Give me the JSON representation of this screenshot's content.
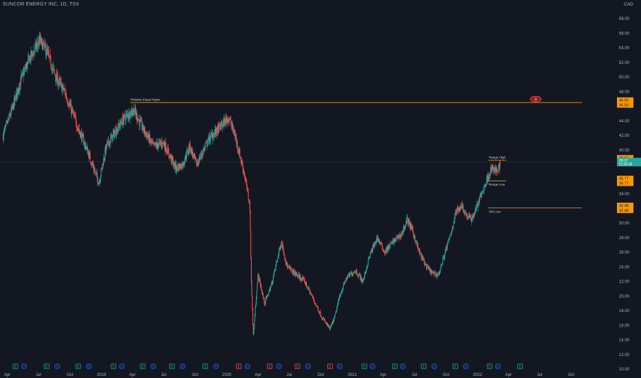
{
  "header": {
    "symbol_title": "SUNCOR ENERGY INC, 1D, TSX",
    "currency": "CAD"
  },
  "colors": {
    "background": "#131722",
    "up": "#26a69a",
    "down": "#ef5350",
    "level_line": "#f0a030",
    "axis_text": "#b2b5be",
    "price_tag_orange": "#ff9800",
    "price_tag_last": "#26a69a"
  },
  "chart_data": {
    "type": "candlestick",
    "x_axis_ticks": [
      "Apr",
      "Jul",
      "Oct",
      "2019",
      "Apr",
      "Jul",
      "Oct",
      "2020",
      "Apr",
      "Jul",
      "Oct",
      "2021",
      "Apr",
      "Jul",
      "Oct",
      "2022",
      "Apr",
      "Jul",
      "Oct"
    ],
    "y_axis_ticks": [
      "10.00",
      "12.00",
      "14.00",
      "16.00",
      "18.00",
      "20.00",
      "22.00",
      "24.00",
      "26.00",
      "28.00",
      "30.00",
      "32.00",
      "34.00",
      "36.00",
      "38.00",
      "40.00",
      "42.00",
      "44.00",
      "46.00",
      "48.00",
      "50.00",
      "52.00",
      "54.00",
      "56.00",
      "58.00"
    ],
    "ylim": [
      10,
      59.5
    ],
    "time_range": [
      "2018-03",
      "2022-11"
    ],
    "close_path": [
      [
        "2018-03-20",
        42.0
      ],
      [
        "2018-04-15",
        45.5
      ],
      [
        "2018-05-10",
        49.5
      ],
      [
        "2018-06-05",
        52.5
      ],
      [
        "2018-07-05",
        55.0
      ],
      [
        "2018-07-25",
        53.5
      ],
      [
        "2018-08-20",
        50.0
      ],
      [
        "2018-09-15",
        48.0
      ],
      [
        "2018-10-05",
        45.5
      ],
      [
        "2018-10-25",
        43.0
      ],
      [
        "2018-11-20",
        40.0
      ],
      [
        "2018-12-24",
        35.5
      ],
      [
        "2019-01-15",
        40.5
      ],
      [
        "2019-02-10",
        42.5
      ],
      [
        "2019-03-10",
        44.5
      ],
      [
        "2019-04-05",
        45.5
      ],
      [
        "2019-05-01",
        43.0
      ],
      [
        "2019-06-01",
        40.5
      ],
      [
        "2019-07-01",
        41.0
      ],
      [
        "2019-08-05",
        37.5
      ],
      [
        "2019-08-25",
        38.0
      ],
      [
        "2019-09-15",
        40.5
      ],
      [
        "2019-10-05",
        38.0
      ],
      [
        "2019-11-10",
        41.5
      ],
      [
        "2019-12-10",
        43.0
      ],
      [
        "2020-01-06",
        44.5
      ],
      [
        "2020-01-25",
        42.0
      ],
      [
        "2020-02-20",
        37.0
      ],
      [
        "2020-03-08",
        32.5
      ],
      [
        "2020-03-12",
        23.0
      ],
      [
        "2020-03-18",
        14.5
      ],
      [
        "2020-04-01",
        23.0
      ],
      [
        "2020-04-20",
        19.0
      ],
      [
        "2020-05-10",
        21.5
      ],
      [
        "2020-06-08",
        27.5
      ],
      [
        "2020-06-25",
        24.0
      ],
      [
        "2020-07-20",
        23.0
      ],
      [
        "2020-08-15",
        22.0
      ],
      [
        "2020-09-10",
        19.5
      ],
      [
        "2020-10-05",
        17.0
      ],
      [
        "2020-10-28",
        15.5
      ],
      [
        "2020-11-10",
        17.0
      ],
      [
        "2020-11-25",
        20.0
      ],
      [
        "2020-12-15",
        22.5
      ],
      [
        "2021-01-10",
        23.5
      ],
      [
        "2021-02-01",
        22.0
      ],
      [
        "2021-02-20",
        25.5
      ],
      [
        "2021-03-15",
        28.0
      ],
      [
        "2021-04-05",
        26.0
      ],
      [
        "2021-05-01",
        27.5
      ],
      [
        "2021-05-25",
        28.5
      ],
      [
        "2021-06-10",
        30.5
      ],
      [
        "2021-06-25",
        29.0
      ],
      [
        "2021-07-15",
        26.0
      ],
      [
        "2021-08-05",
        24.0
      ],
      [
        "2021-08-25",
        23.0
      ],
      [
        "2021-09-10",
        23.0
      ],
      [
        "2021-09-25",
        25.5
      ],
      [
        "2021-10-15",
        28.5
      ],
      [
        "2021-10-30",
        31.5
      ],
      [
        "2021-11-15",
        32.5
      ],
      [
        "2021-11-30",
        31.0
      ],
      [
        "2021-12-15",
        30.5
      ],
      [
        "2022-01-05",
        33.0
      ],
      [
        "2022-01-25",
        35.5
      ],
      [
        "2022-02-10",
        37.5
      ],
      [
        "2022-02-25",
        37.0
      ],
      [
        "2022-03-08",
        38.2
      ]
    ],
    "levels": [
      {
        "label": "Relative Equal Highs",
        "price": 46.5,
        "tag": "46.50",
        "tag2": "46.50",
        "from": "2019-03-25",
        "to": "2022-11-01"
      },
      {
        "label": "Range High",
        "price": 38.6,
        "tag": "38.62",
        "tag2": "38.62",
        "from": "2022-02-01",
        "to": "2022-03-10"
      },
      {
        "label": "Range Low",
        "price": 35.77,
        "tag": "35.77",
        "tag2": "35.77",
        "from": "2022-02-01",
        "to": "2022-03-10"
      },
      {
        "label": "Old Low",
        "price": 32.08,
        "tag": "32.08",
        "tag2": "32.08",
        "from": "2022-02-01",
        "to": "2022-11-01"
      }
    ],
    "last_price": {
      "tag": "38.37",
      "subtag": "01:05:36"
    },
    "events": [
      {
        "t": "2018-04-25",
        "k": "E"
      },
      {
        "t": "2018-05-20",
        "k": "D"
      },
      {
        "t": "2018-07-25",
        "k": "E"
      },
      {
        "t": "2018-08-25",
        "k": "D"
      },
      {
        "t": "2018-10-25",
        "k": "E"
      },
      {
        "t": "2018-11-25",
        "k": "D"
      },
      {
        "t": "2019-02-05",
        "k": "E"
      },
      {
        "t": "2019-03-01",
        "k": "D"
      },
      {
        "t": "2019-05-01",
        "k": "E"
      },
      {
        "t": "2019-06-01",
        "k": "D"
      },
      {
        "t": "2019-07-25",
        "k": "E"
      },
      {
        "t": "2019-08-25",
        "k": "D"
      },
      {
        "t": "2019-10-30",
        "k": "E"
      },
      {
        "t": "2019-12-01",
        "k": "D"
      },
      {
        "t": "2020-02-05",
        "k": "E"
      },
      {
        "t": "2020-03-01",
        "k": "D"
      },
      {
        "t": "2020-05-05",
        "k": "E"
      },
      {
        "t": "2020-06-01",
        "k": "D"
      },
      {
        "t": "2020-07-25",
        "k": "E"
      },
      {
        "t": "2020-08-25",
        "k": "D"
      },
      {
        "t": "2020-10-28",
        "k": "E"
      },
      {
        "t": "2020-11-25",
        "k": "D"
      },
      {
        "t": "2021-02-05",
        "k": "E"
      },
      {
        "t": "2021-03-01",
        "k": "D"
      },
      {
        "t": "2021-05-05",
        "k": "E"
      },
      {
        "t": "2021-05-28",
        "k": "D"
      },
      {
        "t": "2021-07-28",
        "k": "E"
      },
      {
        "t": "2021-08-28",
        "k": "D"
      },
      {
        "t": "2021-10-28",
        "k": "E"
      },
      {
        "t": "2021-11-28",
        "k": "D"
      },
      {
        "t": "2022-02-05",
        "k": "E"
      },
      {
        "t": "2022-03-01",
        "k": "D"
      },
      {
        "t": "2022-05-05",
        "k": "E"
      }
    ]
  }
}
